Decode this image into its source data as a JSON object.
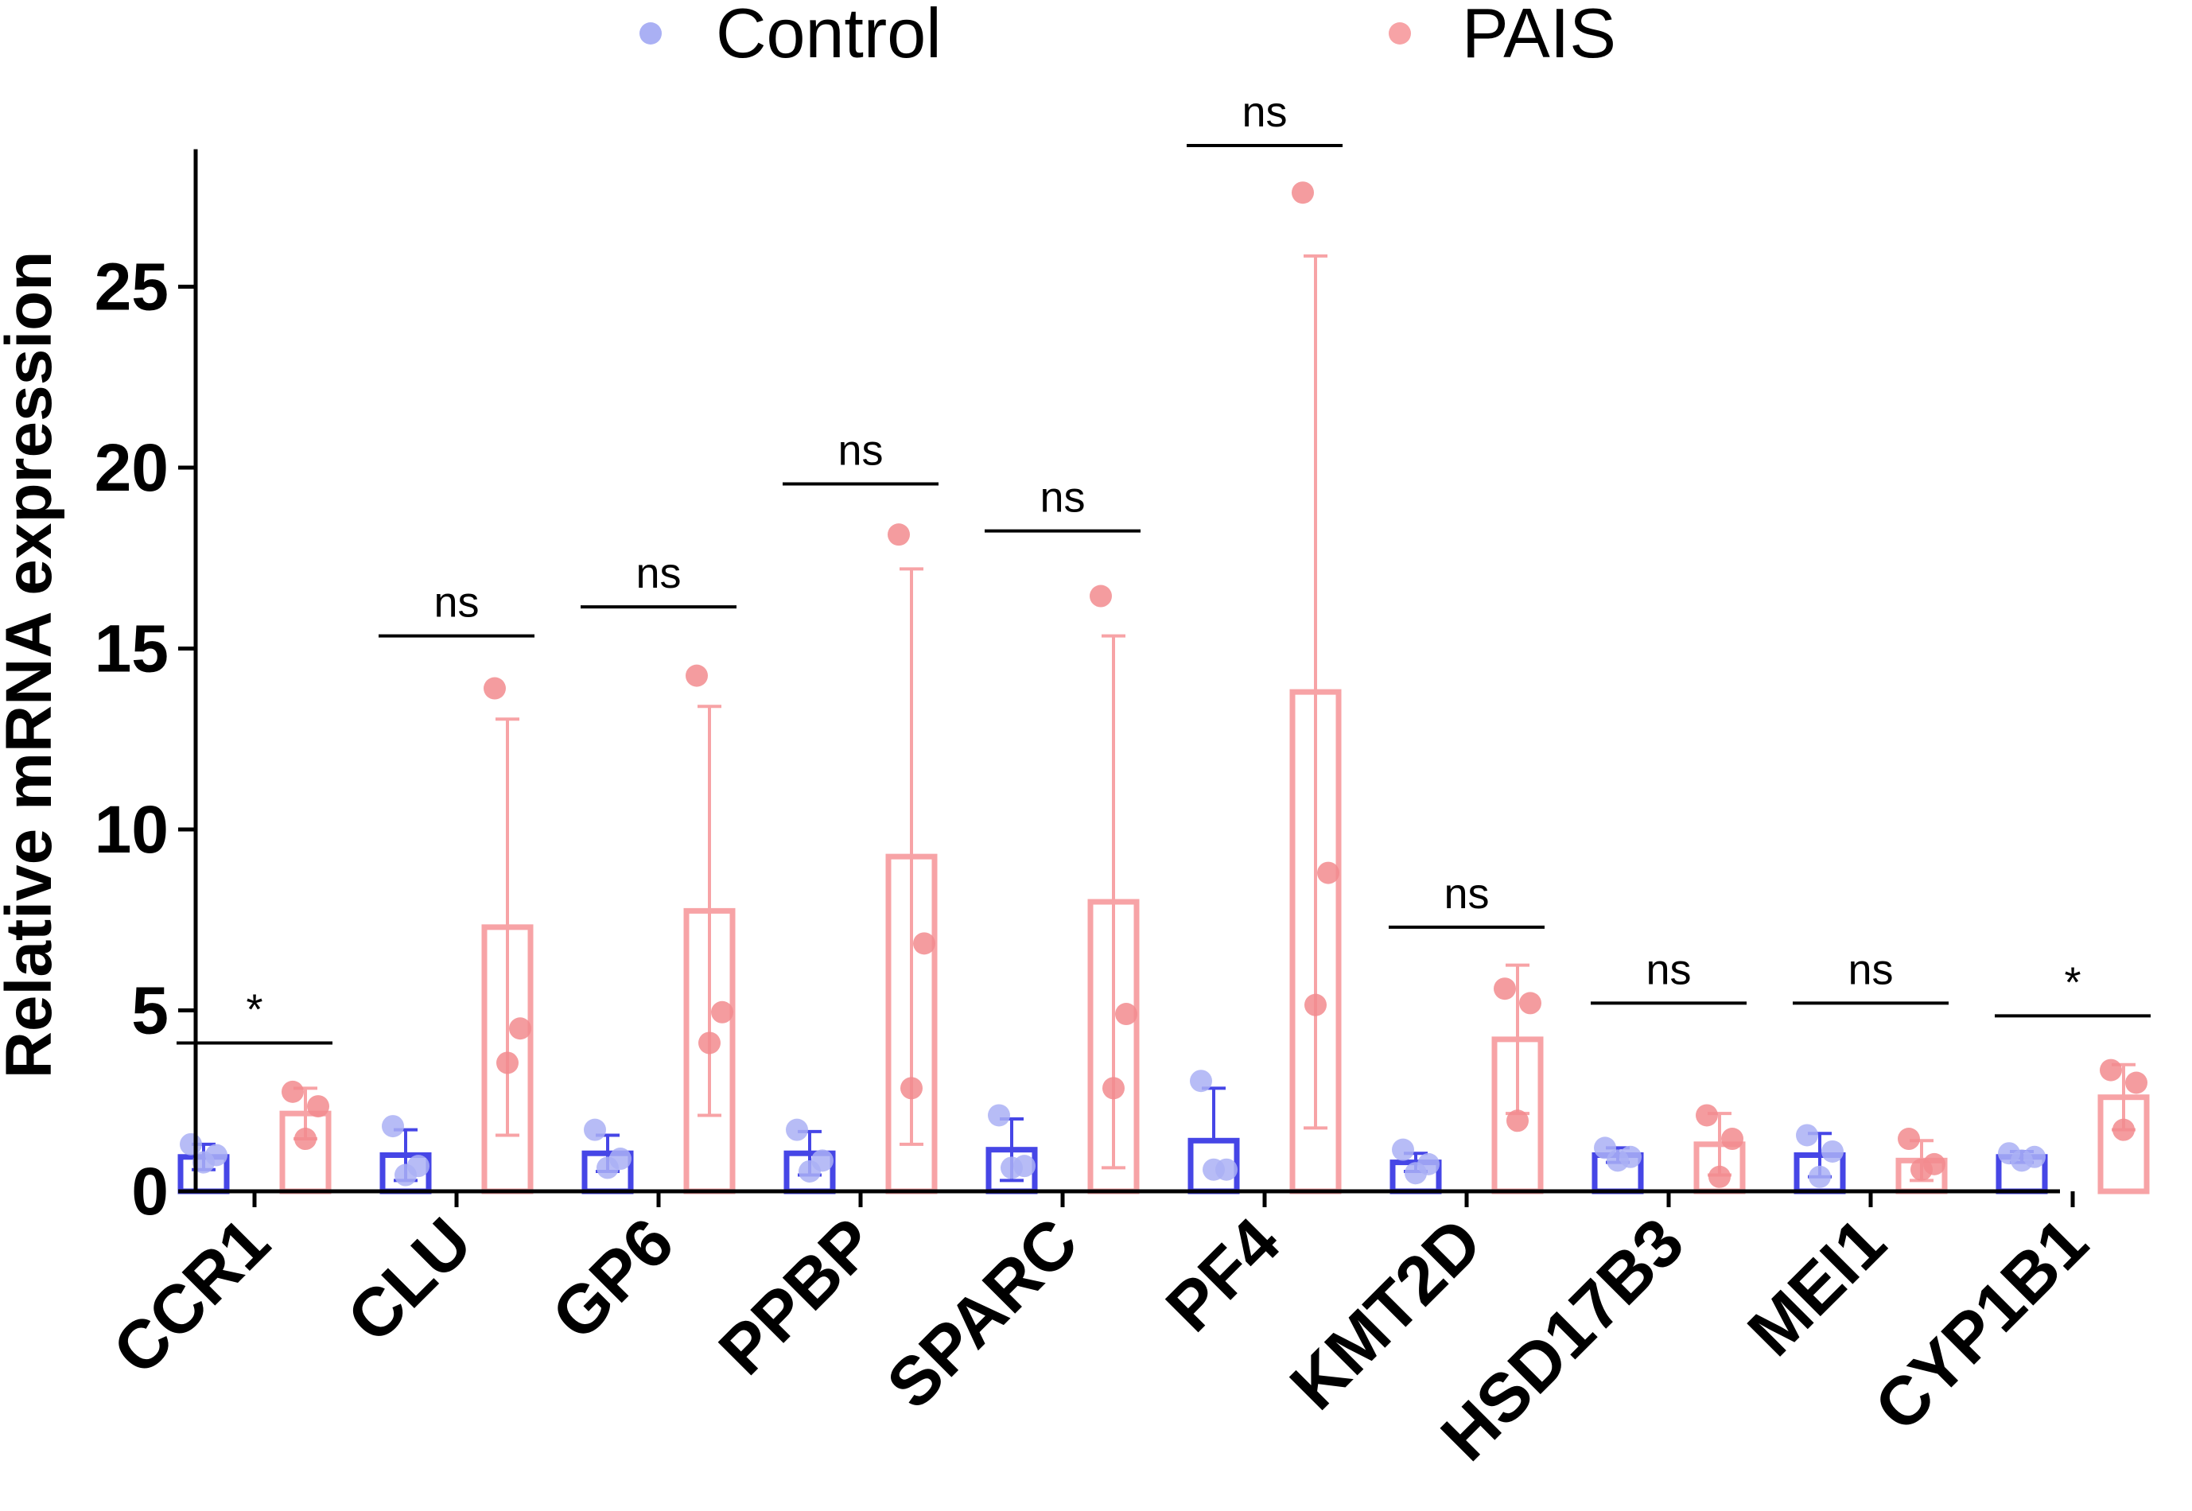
{
  "chart_data": {
    "type": "bar",
    "title": "",
    "xlabel": "",
    "ylabel": "Relative mRNA expression",
    "ylim": [
      0,
      28
    ],
    "yticks": [
      0,
      5,
      10,
      15,
      20,
      25
    ],
    "legend_position": "top",
    "categories": [
      "CCR1",
      "CLU",
      "GP6",
      "PPBP",
      "SPARC",
      "PF4",
      "KMT2D",
      "HSD17B3",
      "MEI1",
      "CYP1B1"
    ],
    "series": [
      {
        "name": "Control",
        "color": "#4646e6",
        "point_color": "#aab0f4",
        "means": [
          0.95,
          1.0,
          1.05,
          1.05,
          1.15,
          1.4,
          0.8,
          1.0,
          1.0,
          0.95
        ],
        "errors": [
          0.35,
          0.7,
          0.5,
          0.6,
          0.85,
          1.45,
          0.25,
          0.2,
          0.6,
          0.15
        ],
        "points": [
          [
            1.3,
            1.0,
            0.8
          ],
          [
            1.8,
            0.7,
            0.45
          ],
          [
            1.7,
            0.9,
            0.65
          ],
          [
            1.7,
            0.85,
            0.55
          ],
          [
            2.1,
            0.7,
            0.65
          ],
          [
            3.05,
            0.6,
            0.6
          ],
          [
            1.15,
            0.75,
            0.5
          ],
          [
            1.2,
            0.95,
            0.85
          ],
          [
            1.55,
            1.1,
            0.4
          ],
          [
            1.05,
            0.95,
            0.85
          ]
        ]
      },
      {
        "name": "PAIS",
        "color": "#f7a3a6",
        "point_color": "#f28b8e",
        "means": [
          2.15,
          7.3,
          7.75,
          9.25,
          8.0,
          13.8,
          4.2,
          1.3,
          0.85,
          2.6
        ],
        "errors": [
          0.7,
          5.75,
          5.65,
          7.95,
          7.35,
          12.05,
          2.05,
          0.85,
          0.55,
          0.9
        ],
        "points": [
          [
            2.75,
            2.35,
            1.45
          ],
          [
            13.9,
            4.5,
            3.55
          ],
          [
            14.25,
            4.95,
            4.1
          ],
          [
            18.15,
            6.85,
            2.85
          ],
          [
            16.45,
            4.9,
            2.85
          ],
          [
            27.6,
            8.8,
            5.15
          ],
          [
            5.6,
            5.2,
            1.95
          ],
          [
            2.1,
            1.45,
            0.4
          ],
          [
            1.45,
            0.75,
            0.6
          ],
          [
            3.35,
            3.0,
            1.7
          ]
        ]
      }
    ],
    "significance": [
      {
        "label": "*",
        "line_y": 4.1
      },
      {
        "label": "ns",
        "line_y": 15.35
      },
      {
        "label": "ns",
        "line_y": 16.15
      },
      {
        "label": "ns",
        "line_y": 19.55
      },
      {
        "label": "ns",
        "line_y": 18.25
      },
      {
        "label": "ns",
        "line_y": 28.9
      },
      {
        "label": "ns",
        "line_y": 7.3
      },
      {
        "label": "ns",
        "line_y": 5.2
      },
      {
        "label": "ns",
        "line_y": 5.2
      },
      {
        "label": "*",
        "line_y": 4.85
      }
    ]
  }
}
